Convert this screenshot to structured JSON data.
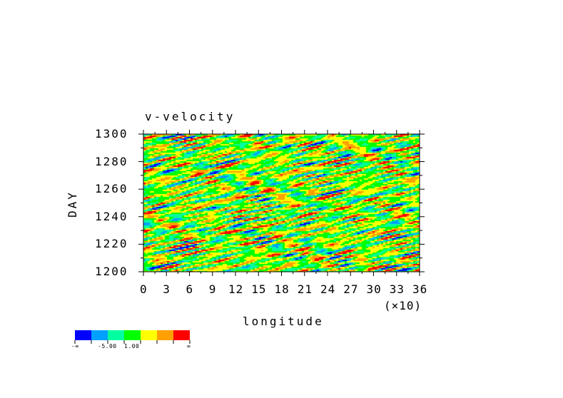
{
  "chart_data": {
    "type": "heatmap",
    "title": "v-velocity",
    "xlabel": "longitude",
    "ylabel": "DAY",
    "x_multiplier_label": "(×10)",
    "xlim": [
      0,
      36
    ],
    "ylim": [
      1200,
      1300
    ],
    "x_ticks": [
      "0",
      "3",
      "6",
      "9",
      "12",
      "15",
      "18",
      "21",
      "24",
      "27",
      "30",
      "33",
      "36"
    ],
    "y_ticks": [
      "1200",
      "1220",
      "1240",
      "1260",
      "1280",
      "1300"
    ],
    "colorbar": {
      "colors": [
        "#0000ff",
        "#00a0ff",
        "#00ffa0",
        "#00ff00",
        "#ffff00",
        "#ffa000",
        "#ff0000"
      ],
      "labels": [
        "-∞",
        "-5.00",
        "1.00",
        "∞"
      ]
    }
  }
}
